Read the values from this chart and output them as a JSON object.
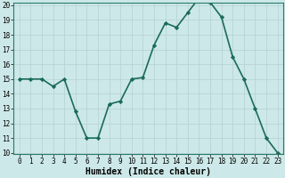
{
  "x": [
    0,
    1,
    2,
    3,
    4,
    5,
    6,
    7,
    8,
    9,
    10,
    11,
    12,
    13,
    14,
    15,
    16,
    17,
    18,
    19,
    20,
    21,
    22,
    23
  ],
  "y": [
    15,
    15,
    15,
    14.5,
    15,
    12.8,
    11,
    11,
    13.3,
    13.5,
    15,
    15.1,
    17.3,
    18.8,
    18.5,
    19.5,
    20.5,
    20.2,
    19.2,
    16.5,
    15,
    13,
    11,
    10
  ],
  "line_color": "#1a6b5a",
  "marker": "D",
  "marker_size": 2.2,
  "bg_color": "#cde8e8",
  "grid_color": "#b8d4d4",
  "xlabel": "Humidex (Indice chaleur)",
  "ylim": [
    10,
    20
  ],
  "xlim": [
    -0.5,
    23.5
  ],
  "yticks": [
    10,
    11,
    12,
    13,
    14,
    15,
    16,
    17,
    18,
    19,
    20
  ],
  "xticks": [
    0,
    1,
    2,
    3,
    4,
    5,
    6,
    7,
    8,
    9,
    10,
    11,
    12,
    13,
    14,
    15,
    16,
    17,
    18,
    19,
    20,
    21,
    22,
    23
  ],
  "tick_fontsize": 5.5,
  "xlabel_fontsize": 7.0,
  "line_width": 1.2
}
